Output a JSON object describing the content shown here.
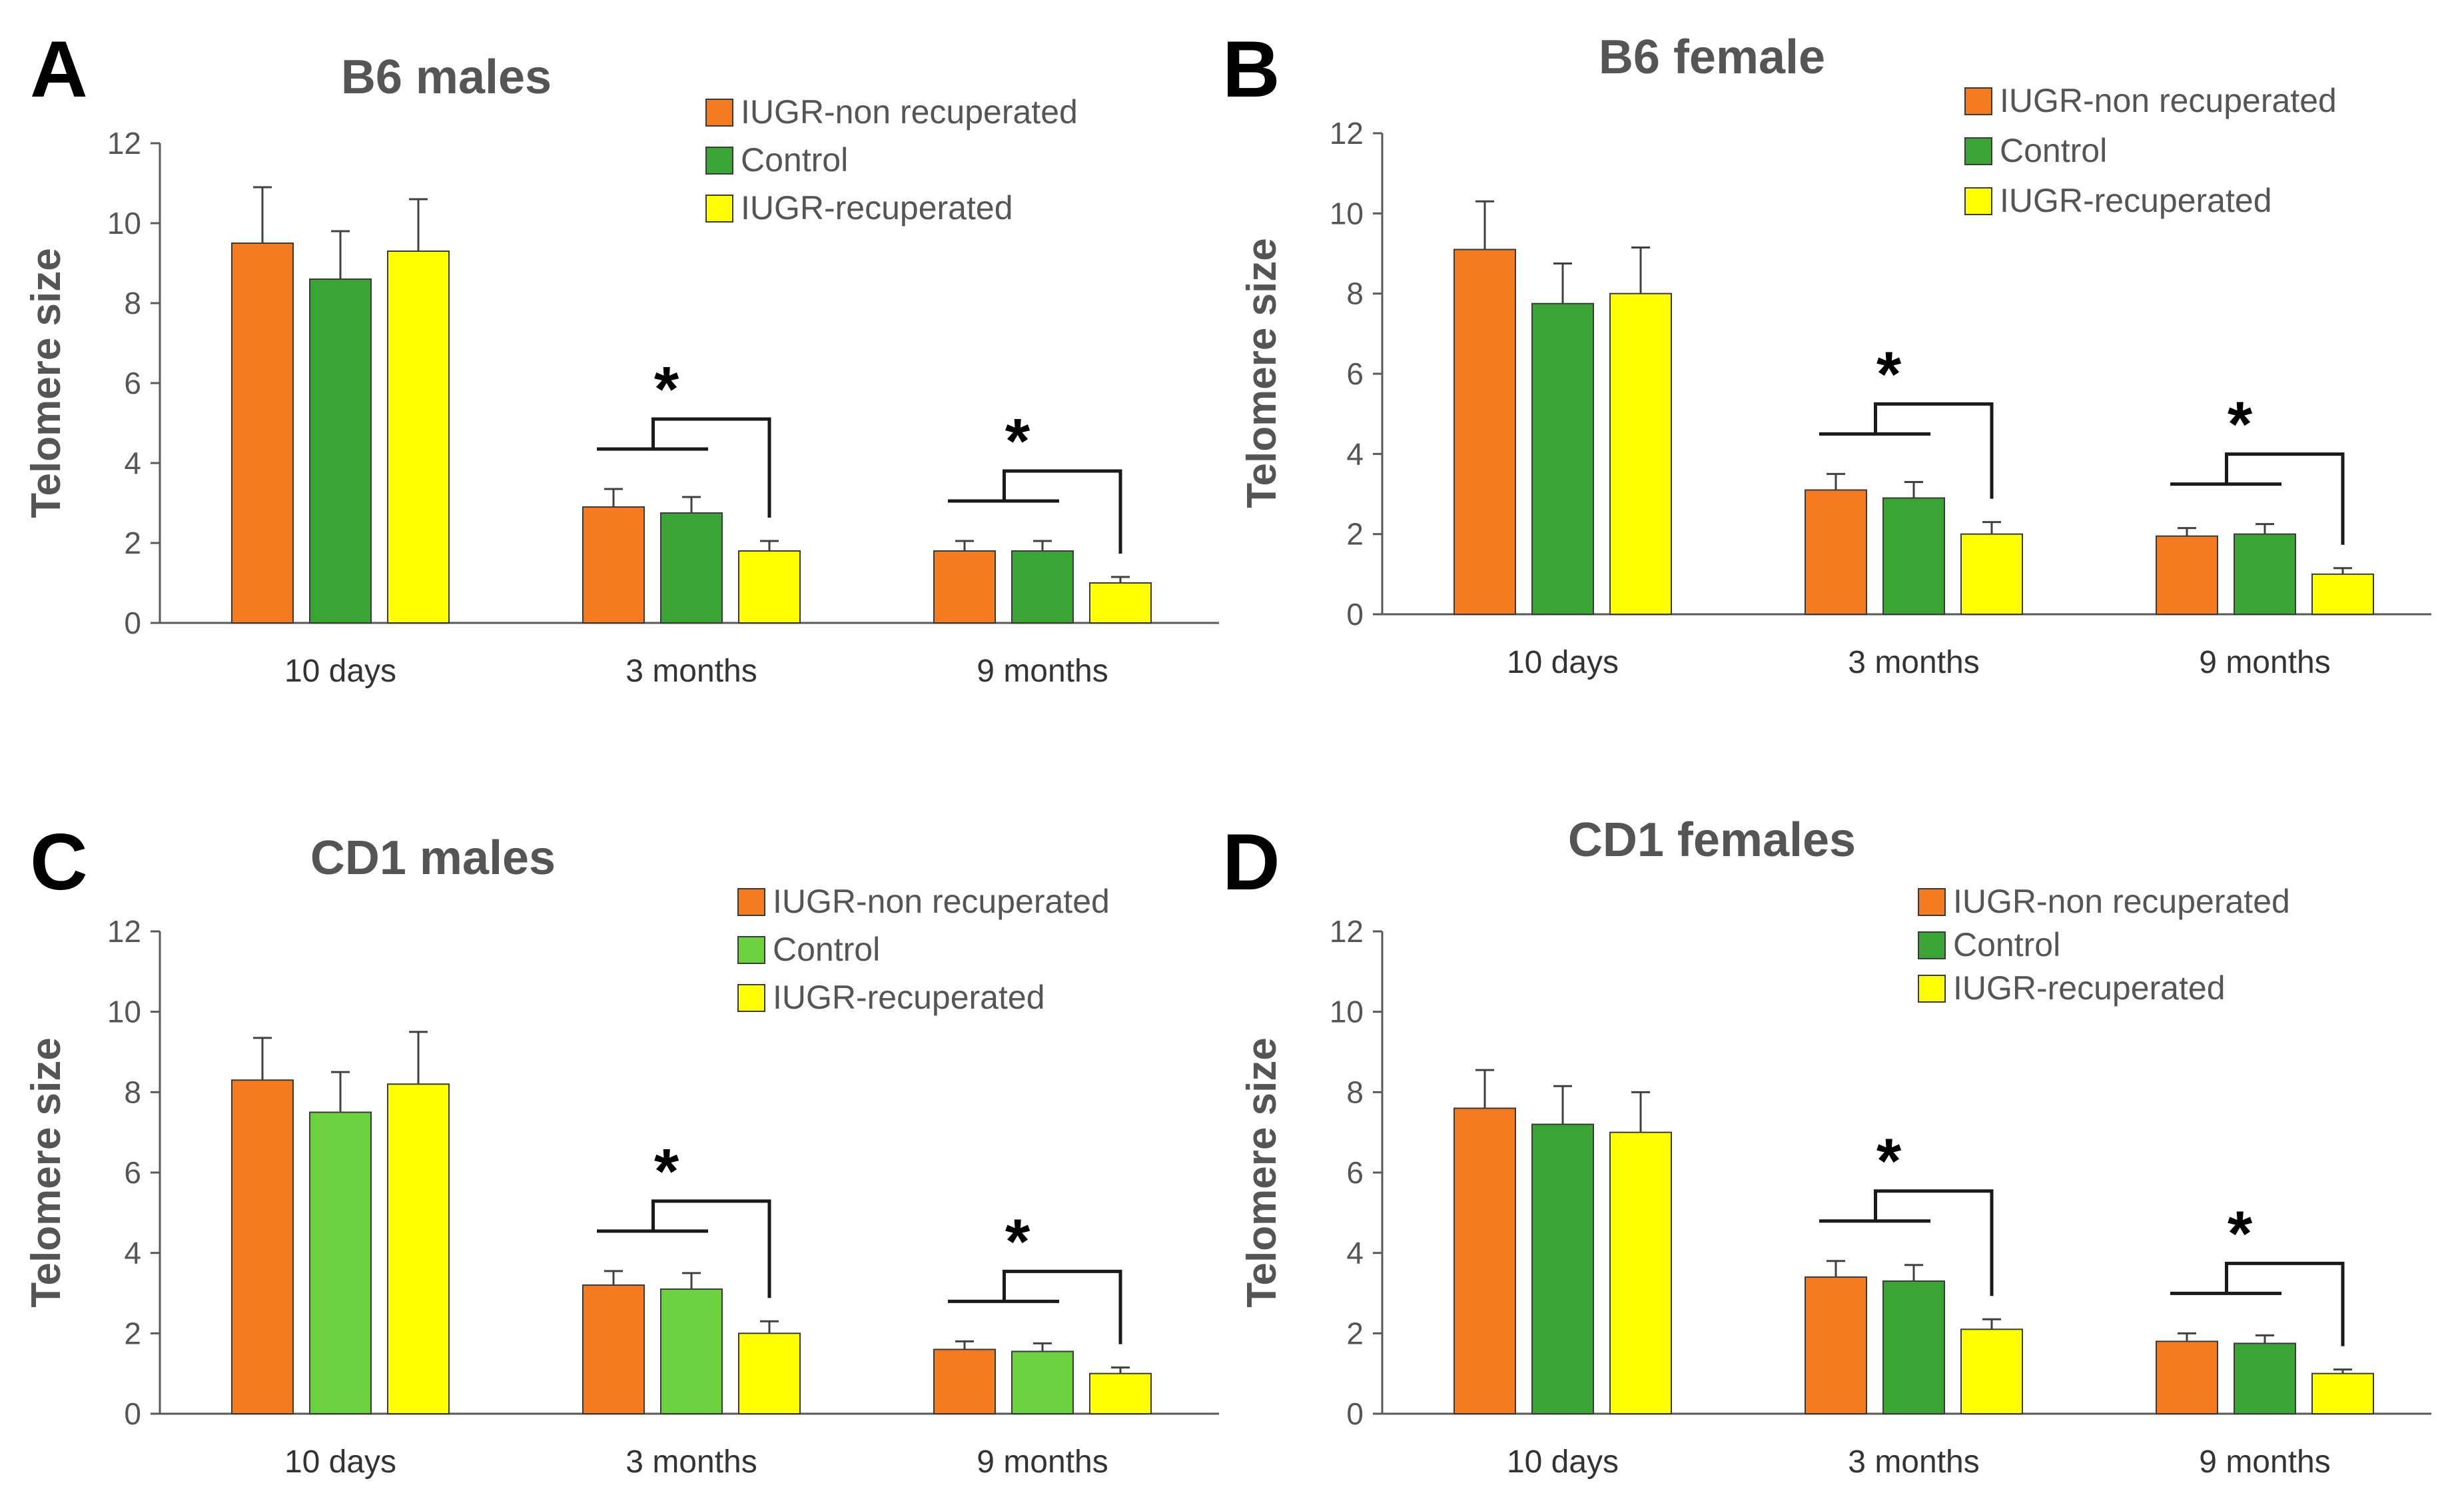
{
  "colors": {
    "axis": "#595959",
    "text": "#555555",
    "errorbar": "#404040",
    "bracket": "#1a1a1a",
    "bar_stroke": "#3a3a3a"
  },
  "chart_data": [
    {
      "type": "bar",
      "panel": "A",
      "title": "B6 males",
      "ylabel": "Telomere size",
      "xlabel": "",
      "ylim": [
        0,
        12
      ],
      "yticks": [
        "0",
        "2",
        "4",
        "6",
        "8",
        "10",
        "12"
      ],
      "legend_position": "top-right",
      "categories": [
        "10 days",
        "3 months",
        "9 months"
      ],
      "series": [
        {
          "name": "IUGR-non recuperated",
          "color": "#f47b20",
          "values": [
            9.5,
            2.9,
            1.8
          ],
          "errors": [
            1.4,
            0.45,
            0.25
          ]
        },
        {
          "name": "Control",
          "color": "#3aa535",
          "values": [
            8.6,
            2.75,
            1.8
          ],
          "errors": [
            1.2,
            0.4,
            0.25
          ]
        },
        {
          "name": "IUGR-recuperated",
          "color": "#ffff00",
          "values": [
            9.3,
            1.8,
            1.0
          ],
          "errors": [
            1.3,
            0.25,
            0.15
          ]
        }
      ],
      "significance": [
        {
          "category": "3 months",
          "label": "*"
        },
        {
          "category": "9 months",
          "label": "*"
        }
      ]
    },
    {
      "type": "bar",
      "panel": "B",
      "title": "B6 female",
      "ylabel": "Telomere size",
      "xlabel": "",
      "ylim": [
        0,
        12
      ],
      "yticks": [
        "0",
        "2",
        "4",
        "6",
        "8",
        "10",
        "12"
      ],
      "legend_position": "top-right",
      "categories": [
        "10 days",
        "3 months",
        "9 months"
      ],
      "series": [
        {
          "name": "IUGR-non recuperated",
          "color": "#f47b20",
          "values": [
            9.1,
            3.1,
            1.95
          ],
          "errors": [
            1.2,
            0.4,
            0.2
          ]
        },
        {
          "name": "Control",
          "color": "#3aa535",
          "values": [
            7.75,
            2.9,
            2.0
          ],
          "errors": [
            1.0,
            0.4,
            0.25
          ]
        },
        {
          "name": "IUGR-recuperated",
          "color": "#ffff00",
          "values": [
            8.0,
            2.0,
            1.0
          ],
          "errors": [
            1.15,
            0.3,
            0.15
          ]
        }
      ],
      "significance": [
        {
          "category": "3 months",
          "label": "*"
        },
        {
          "category": "9 months",
          "label": "*"
        }
      ]
    },
    {
      "type": "bar",
      "panel": "C",
      "title": "CD1 males",
      "ylabel": "Telomere size",
      "xlabel": "",
      "ylim": [
        0,
        12
      ],
      "yticks": [
        "0",
        "2",
        "4",
        "6",
        "8",
        "10",
        "12"
      ],
      "legend_position": "top-right",
      "categories": [
        "10 days",
        "3 months",
        "9 months"
      ],
      "series": [
        {
          "name": "IUGR-non recuperated",
          "color": "#f47b20",
          "values": [
            8.3,
            3.2,
            1.6
          ],
          "errors": [
            1.05,
            0.35,
            0.2
          ]
        },
        {
          "name": "Control",
          "color": "#6bd13f",
          "values": [
            7.5,
            3.1,
            1.55
          ],
          "errors": [
            1.0,
            0.4,
            0.2
          ]
        },
        {
          "name": "IUGR-recuperated",
          "color": "#ffff00",
          "values": [
            8.2,
            2.0,
            1.0
          ],
          "errors": [
            1.3,
            0.3,
            0.15
          ]
        }
      ],
      "significance": [
        {
          "category": "3 months",
          "label": "*"
        },
        {
          "category": "9 months",
          "label": "*"
        }
      ]
    },
    {
      "type": "bar",
      "panel": "D",
      "title": "CD1 females",
      "ylabel": "Telomere size",
      "xlabel": "",
      "ylim": [
        0,
        12
      ],
      "yticks": [
        "0",
        "2",
        "4",
        "6",
        "8",
        "10",
        "12"
      ],
      "legend_position": "top-right",
      "categories": [
        "10 days",
        "3 months",
        "9 months"
      ],
      "series": [
        {
          "name": "IUGR-non recuperated",
          "color": "#f47b20",
          "values": [
            7.6,
            3.4,
            1.8
          ],
          "errors": [
            0.95,
            0.4,
            0.2
          ]
        },
        {
          "name": "Control",
          "color": "#3aa535",
          "values": [
            7.2,
            3.3,
            1.75
          ],
          "errors": [
            0.95,
            0.4,
            0.2
          ]
        },
        {
          "name": "IUGR-recuperated",
          "color": "#ffff00",
          "values": [
            7.0,
            2.1,
            1.0
          ],
          "errors": [
            1.0,
            0.25,
            0.1
          ]
        }
      ],
      "significance": [
        {
          "category": "3 months",
          "label": "*"
        },
        {
          "category": "9 months",
          "label": "*"
        }
      ]
    }
  ]
}
